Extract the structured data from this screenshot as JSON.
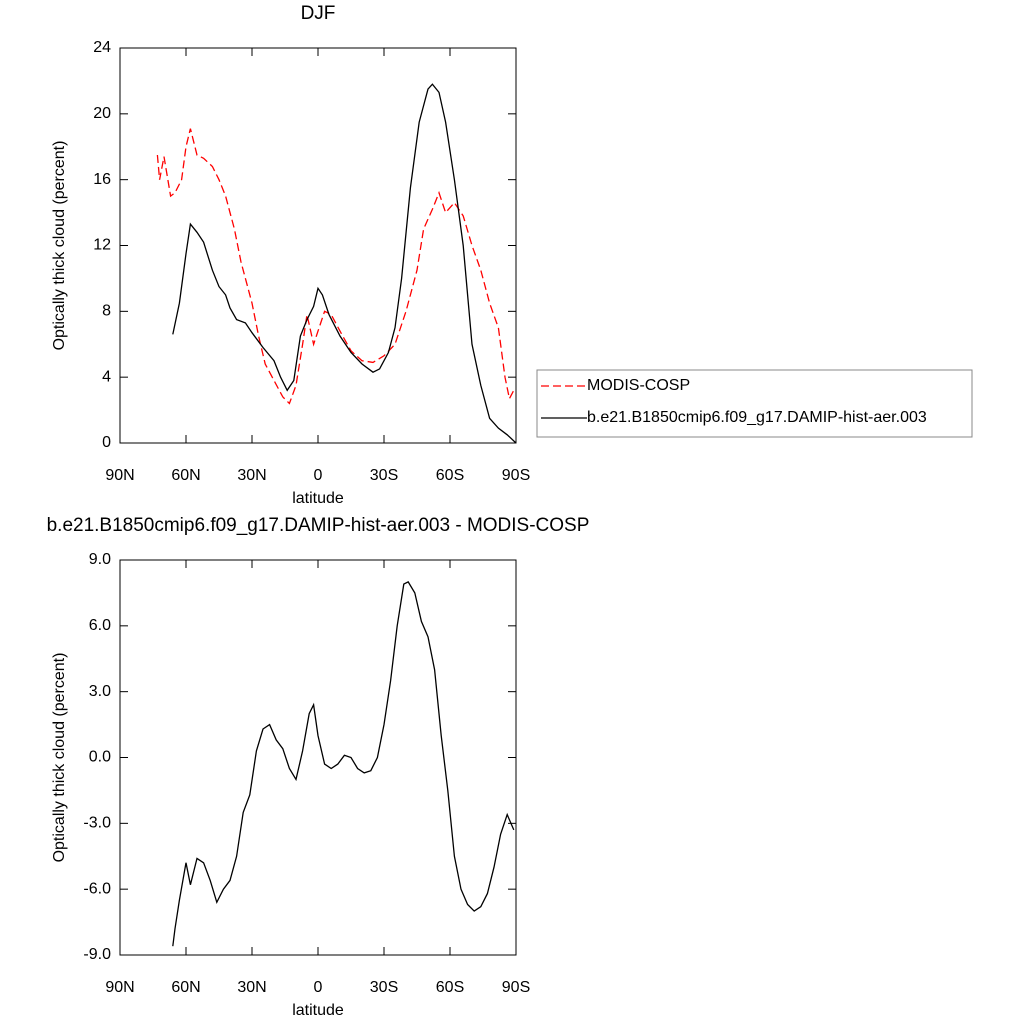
{
  "chart_data": [
    {
      "type": "line",
      "title": "DJF",
      "x_label": "latitude",
      "y_label": "Optically thick cloud (percent)",
      "xlim": [
        90,
        -90
      ],
      "xticks": [
        {
          "value": 90,
          "label": "90N"
        },
        {
          "value": 60,
          "label": "60N"
        },
        {
          "value": 30,
          "label": "30N"
        },
        0,
        {
          "value": -30,
          "label": "30S"
        },
        {
          "value": -60,
          "label": "60S"
        },
        {
          "value": -90,
          "label": "90S"
        }
      ],
      "ylim": [
        0,
        24
      ],
      "yticks": [
        0,
        4,
        8,
        12,
        16,
        20,
        24
      ],
      "legend": "right",
      "series": [
        {
          "name": "MODIS-COSP",
          "color": "#ff0000",
          "dash": true,
          "x": [
            73,
            72,
            70,
            67,
            65,
            62,
            60,
            58,
            55,
            52,
            48,
            45,
            42,
            38,
            35,
            30,
            27,
            24,
            20,
            16,
            13,
            10,
            7,
            5,
            2,
            0,
            -3,
            -6,
            -10,
            -15,
            -20,
            -25,
            -30,
            -35,
            -40,
            -45,
            -48,
            -52,
            -55,
            -58,
            -62,
            -66,
            -70,
            -74,
            -78,
            -82,
            -85,
            -87,
            -89
          ],
          "values": [
            17.5,
            16.0,
            17.4,
            15.0,
            15.2,
            16.0,
            18.0,
            19.1,
            17.5,
            17.3,
            16.8,
            16.0,
            15.0,
            13.0,
            11.0,
            8.5,
            6.5,
            4.8,
            3.8,
            2.8,
            2.4,
            3.5,
            6.0,
            7.8,
            6.0,
            6.8,
            8.0,
            7.8,
            6.8,
            5.6,
            5.0,
            4.9,
            5.3,
            6.0,
            8.0,
            10.5,
            13.0,
            14.2,
            15.2,
            14.0,
            14.6,
            13.8,
            12.0,
            10.5,
            8.5,
            7.0,
            4.0,
            2.7,
            3.2
          ]
        },
        {
          "name": "b.e21.B1850cmip6.f09_g17.DAMIP-hist-aer.003",
          "color": "#000000",
          "dash": false,
          "x": [
            66,
            63,
            60,
            58,
            55,
            52,
            48,
            45,
            42,
            40,
            37,
            33,
            30,
            25,
            20,
            17,
            14,
            11,
            8,
            5,
            2,
            0,
            -2,
            -5,
            -10,
            -15,
            -20,
            -25,
            -28,
            -32,
            -35,
            -38,
            -42,
            -46,
            -50,
            -52,
            -55,
            -58,
            -62,
            -66,
            -70,
            -74,
            -78,
            -82,
            -86,
            -90
          ],
          "values": [
            6.6,
            8.5,
            11.5,
            13.3,
            12.8,
            12.2,
            10.5,
            9.5,
            9.0,
            8.2,
            7.5,
            7.3,
            6.7,
            5.8,
            5.0,
            4.0,
            3.2,
            3.8,
            6.5,
            7.5,
            8.3,
            9.4,
            9.0,
            7.8,
            6.5,
            5.5,
            4.8,
            4.3,
            4.5,
            5.5,
            7.0,
            10.0,
            15.5,
            19.5,
            21.5,
            21.8,
            21.3,
            19.5,
            16.0,
            12.0,
            6.0,
            3.5,
            1.5,
            0.9,
            0.5,
            0.0
          ]
        }
      ]
    },
    {
      "type": "line",
      "title": "b.e21.B1850cmip6.f09_g17.DAMIP-hist-aer.003 - MODIS-COSP",
      "x_label": "latitude",
      "y_label": "Optically thick cloud (percent)",
      "xlim": [
        90,
        -90
      ],
      "xticks": [
        {
          "value": 90,
          "label": "90N"
        },
        {
          "value": 60,
          "label": "60N"
        },
        {
          "value": 30,
          "label": "30N"
        },
        0,
        {
          "value": -30,
          "label": "30S"
        },
        {
          "value": -60,
          "label": "60S"
        },
        {
          "value": -90,
          "label": "90S"
        }
      ],
      "ylim": [
        -9,
        9
      ],
      "yticks": [
        {
          "value": -9,
          "label": "-9.0"
        },
        {
          "value": -6,
          "label": "-6.0"
        },
        {
          "value": -3,
          "label": "-3.0"
        },
        {
          "value": 0,
          "label": "0.0"
        },
        {
          "value": 3,
          "label": "3.0"
        },
        {
          "value": 6,
          "label": "6.0"
        },
        {
          "value": 9,
          "label": "9.0"
        }
      ],
      "color": "#000000",
      "x": [
        66,
        65,
        63,
        60,
        58,
        55,
        52,
        49,
        46,
        43,
        40,
        37,
        34,
        31,
        28,
        25,
        22,
        19,
        16,
        13,
        10,
        7,
        4,
        2,
        0,
        -3,
        -6,
        -9,
        -12,
        -15,
        -18,
        -21,
        -24,
        -27,
        -30,
        -33,
        -36,
        -39,
        -41,
        -44,
        -47,
        -50,
        -53,
        -56,
        -59,
        -62,
        -65,
        -68,
        -71,
        -74,
        -77,
        -80,
        -83,
        -86,
        -89
      ],
      "values": [
        -8.6,
        -7.8,
        -6.5,
        -4.8,
        -5.8,
        -4.6,
        -4.8,
        -5.6,
        -6.6,
        -6.0,
        -5.6,
        -4.5,
        -2.5,
        -1.7,
        0.3,
        1.3,
        1.5,
        0.8,
        0.4,
        -0.5,
        -1.0,
        0.3,
        2.0,
        2.4,
        1.0,
        -0.3,
        -0.5,
        -0.3,
        0.1,
        0.0,
        -0.5,
        -0.7,
        -0.6,
        0.0,
        1.5,
        3.5,
        6.0,
        7.9,
        8.0,
        7.5,
        6.2,
        5.5,
        4.0,
        1.0,
        -1.5,
        -4.5,
        -6.0,
        -6.7,
        -7.0,
        -6.8,
        -6.2,
        -5.0,
        -3.5,
        -2.6,
        -3.3
      ]
    }
  ]
}
